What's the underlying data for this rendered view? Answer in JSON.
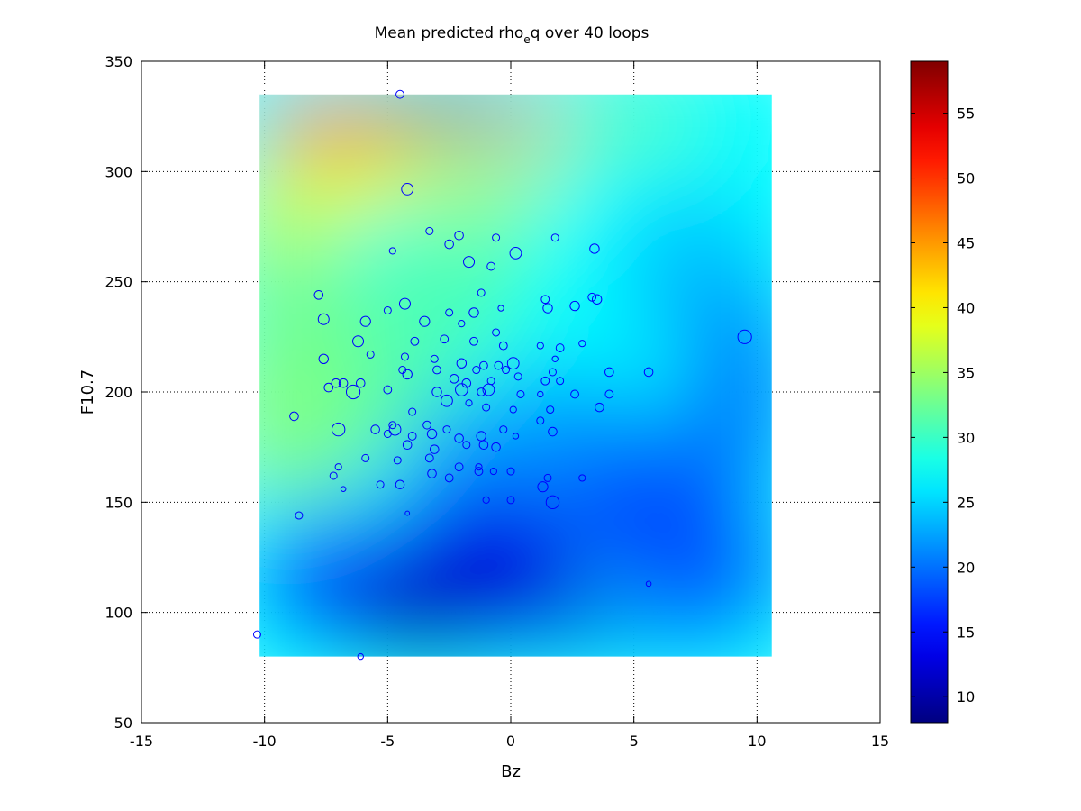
{
  "chart_data": {
    "type": "scatter",
    "title": {
      "pre": "Mean predicted rho",
      "sub": "e",
      "post": "q over 40 loops"
    },
    "xlabel": "Bz",
    "ylabel": "F10.7",
    "xlim": [
      -15,
      15
    ],
    "ylim": [
      50,
      350
    ],
    "xticks": [
      -15,
      -10,
      -5,
      0,
      5,
      10,
      15
    ],
    "yticks": [
      50,
      100,
      150,
      200,
      250,
      300,
      350
    ],
    "grid": true,
    "colormap": "jet",
    "background_field": {
      "x_range": [
        -10.2,
        10.6
      ],
      "y_range": [
        80,
        335
      ]
    },
    "colorbar": {
      "range": [
        8,
        59
      ],
      "ticks": [
        10,
        15,
        20,
        25,
        30,
        35,
        40,
        45,
        50,
        55
      ],
      "placement": "right"
    },
    "marker_color": "#0000ff",
    "points": [
      [
        -4.5,
        335,
        1.1
      ],
      [
        -4.2,
        292,
        1.6
      ],
      [
        -3.3,
        273,
        1.0
      ],
      [
        -2.5,
        267,
        1.2
      ],
      [
        -2.1,
        271,
        1.2
      ],
      [
        -0.6,
        270,
        1.0
      ],
      [
        0.2,
        263,
        1.6
      ],
      [
        1.8,
        270,
        1.0
      ],
      [
        -4.8,
        264,
        0.9
      ],
      [
        -1.7,
        259,
        1.5
      ],
      [
        -0.8,
        257,
        1.1
      ],
      [
        3.4,
        265,
        1.3
      ],
      [
        -7.8,
        244,
        1.2
      ],
      [
        -4.3,
        240,
        1.5
      ],
      [
        -5.0,
        237,
        1.0
      ],
      [
        -2.5,
        236,
        1.0
      ],
      [
        -1.5,
        236,
        1.3
      ],
      [
        -0.4,
        238,
        0.8
      ],
      [
        1.4,
        242,
        1.1
      ],
      [
        1.5,
        238,
        1.3
      ],
      [
        2.6,
        239,
        1.3
      ],
      [
        3.3,
        243,
        1.1
      ],
      [
        3.5,
        242,
        1.3
      ],
      [
        -1.2,
        245,
        1.0
      ],
      [
        -7.6,
        233,
        1.5
      ],
      [
        -5.9,
        232,
        1.4
      ],
      [
        -3.5,
        232,
        1.4
      ],
      [
        -2.0,
        231,
        0.9
      ],
      [
        -0.6,
        227,
        1.0
      ],
      [
        -6.2,
        223,
        1.5
      ],
      [
        -3.9,
        223,
        1.1
      ],
      [
        -2.7,
        224,
        1.1
      ],
      [
        -1.5,
        223,
        1.1
      ],
      [
        -0.3,
        221,
        1.1
      ],
      [
        1.2,
        221,
        0.9
      ],
      [
        2.0,
        220,
        1.1
      ],
      [
        2.9,
        222,
        0.9
      ],
      [
        -7.6,
        215,
        1.3
      ],
      [
        -5.7,
        217,
        1.0
      ],
      [
        -4.3,
        216,
        1.0
      ],
      [
        -3.1,
        215,
        1.0
      ],
      [
        -2.0,
        213,
        1.3
      ],
      [
        -1.1,
        212,
        1.1
      ],
      [
        -0.5,
        212,
        1.1
      ],
      [
        0.1,
        213,
        1.6
      ],
      [
        1.8,
        215,
        0.8
      ],
      [
        9.5,
        225,
        1.9
      ],
      [
        -4.4,
        210,
        1.0
      ],
      [
        -3.0,
        210,
        1.1
      ],
      [
        -1.4,
        210,
        1.0
      ],
      [
        -0.2,
        210,
        1.0
      ],
      [
        1.7,
        209,
        1.0
      ],
      [
        5.6,
        209,
        1.2
      ],
      [
        4.0,
        209,
        1.2
      ],
      [
        -4.2,
        208,
        1.3
      ],
      [
        -2.3,
        206,
        1.2
      ],
      [
        -1.8,
        204,
        1.2
      ],
      [
        -0.8,
        205,
        1.0
      ],
      [
        0.3,
        207,
        1.0
      ],
      [
        2.0,
        205,
        1.0
      ],
      [
        1.4,
        205,
        1.1
      ],
      [
        -7.1,
        204,
        1.2
      ],
      [
        -6.8,
        204,
        1.2
      ],
      [
        -6.1,
        204,
        1.2
      ],
      [
        -7.4,
        202,
        1.2
      ],
      [
        -6.4,
        200,
        1.9
      ],
      [
        -5.0,
        201,
        1.1
      ],
      [
        -3.0,
        200,
        1.3
      ],
      [
        -2.0,
        201,
        1.7
      ],
      [
        -1.2,
        200,
        1.1
      ],
      [
        -0.9,
        201,
        1.6
      ],
      [
        0.4,
        199,
        1.0
      ],
      [
        1.2,
        199,
        0.8
      ],
      [
        2.6,
        199,
        1.1
      ],
      [
        4.0,
        199,
        1.1
      ],
      [
        -8.8,
        189,
        1.2
      ],
      [
        -4.8,
        185,
        1.0
      ],
      [
        -4.0,
        191,
        1.0
      ],
      [
        -3.4,
        185,
        1.1
      ],
      [
        -2.6,
        196,
        1.6
      ],
      [
        -1.7,
        195,
        0.9
      ],
      [
        -1.0,
        193,
        1.0
      ],
      [
        0.1,
        192,
        0.9
      ],
      [
        1.6,
        192,
        1.0
      ],
      [
        3.6,
        193,
        1.2
      ],
      [
        -7.0,
        183,
        1.8
      ],
      [
        -5.5,
        183,
        1.2
      ],
      [
        -5.0,
        181,
        1.0
      ],
      [
        -4.7,
        183,
        1.6
      ],
      [
        -4.0,
        180,
        1.1
      ],
      [
        -3.2,
        181,
        1.3
      ],
      [
        -2.6,
        183,
        1.0
      ],
      [
        -2.1,
        179,
        1.2
      ],
      [
        -1.2,
        180,
        1.3
      ],
      [
        -0.3,
        183,
        1.0
      ],
      [
        0.2,
        180,
        0.8
      ],
      [
        1.7,
        182,
        1.2
      ],
      [
        1.2,
        187,
        1.0
      ],
      [
        -4.2,
        176,
        1.2
      ],
      [
        -3.1,
        174,
        1.2
      ],
      [
        -1.8,
        176,
        1.0
      ],
      [
        -1.1,
        176,
        1.2
      ],
      [
        -0.6,
        175,
        1.2
      ],
      [
        -5.9,
        170,
        1.0
      ],
      [
        -4.6,
        169,
        1.0
      ],
      [
        -3.3,
        170,
        1.1
      ],
      [
        -2.1,
        166,
        1.1
      ],
      [
        -1.3,
        166,
        0.9
      ],
      [
        -0.7,
        164,
        0.9
      ],
      [
        -7.0,
        166,
        0.9
      ],
      [
        -7.2,
        162,
        1.0
      ],
      [
        -5.3,
        158,
        1.0
      ],
      [
        -4.5,
        158,
        1.2
      ],
      [
        -3.2,
        163,
        1.2
      ],
      [
        -2.5,
        161,
        1.1
      ],
      [
        -1.3,
        164,
        1.1
      ],
      [
        0.0,
        164,
        1.0
      ],
      [
        1.5,
        161,
        1.0
      ],
      [
        2.9,
        161,
        0.9
      ],
      [
        -6.8,
        156,
        0.7
      ],
      [
        1.3,
        157,
        1.4
      ],
      [
        1.7,
        150,
        1.8
      ],
      [
        -1.0,
        151,
        0.9
      ],
      [
        0.0,
        151,
        1.0
      ],
      [
        -8.6,
        144,
        1.0
      ],
      [
        -4.2,
        145,
        0.6
      ],
      [
        5.6,
        113,
        0.7
      ],
      [
        -10.3,
        90,
        1.0
      ],
      [
        -6.1,
        80,
        0.8
      ]
    ]
  }
}
